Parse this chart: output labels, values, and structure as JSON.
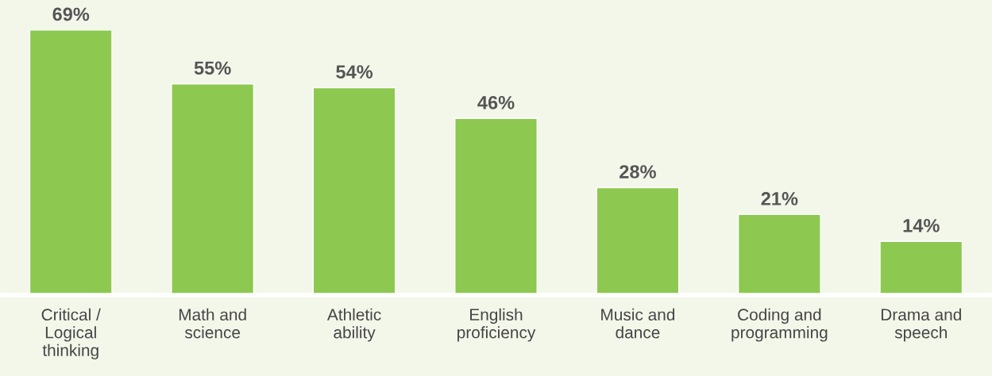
{
  "chart_data": {
    "type": "bar",
    "categories": [
      "Critical /\nLogical\nthinking",
      "Math and\nscience",
      "Athletic\nability",
      "English\nproficiency",
      "Music and\ndance",
      "Coding and\nprogramming",
      "Drama and\nspeech"
    ],
    "values": [
      69,
      55,
      54,
      46,
      28,
      21,
      14
    ],
    "value_labels": [
      "69%",
      "55%",
      "54%",
      "46%",
      "28%",
      "21%",
      "14%"
    ],
    "color": "#8dc850",
    "grid": false,
    "legend": false
  }
}
